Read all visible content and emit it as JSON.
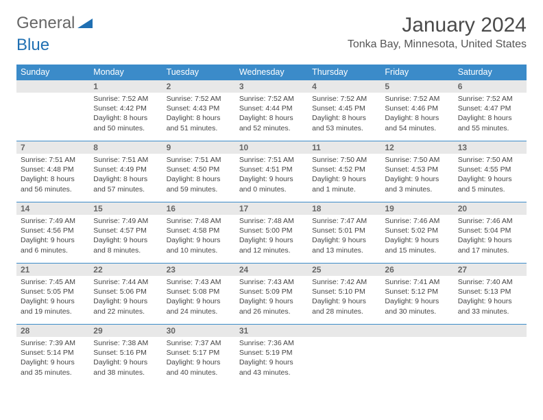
{
  "logo": {
    "text1": "General",
    "text2": "Blue"
  },
  "title": "January 2024",
  "location": "Tonka Bay, Minnesota, United States",
  "colors": {
    "header_bg": "#3b8bc9",
    "header_text": "#ffffff",
    "daynum_bg": "#e8e8e8",
    "border": "#3b8bc9",
    "body_text": "#444444",
    "logo_blue": "#1f6fb2"
  },
  "day_headers": [
    "Sunday",
    "Monday",
    "Tuesday",
    "Wednesday",
    "Thursday",
    "Friday",
    "Saturday"
  ],
  "weeks": [
    [
      null,
      {
        "n": "1",
        "sunrise": "7:52 AM",
        "sunset": "4:42 PM",
        "daylight": "8 hours and 50 minutes."
      },
      {
        "n": "2",
        "sunrise": "7:52 AM",
        "sunset": "4:43 PM",
        "daylight": "8 hours and 51 minutes."
      },
      {
        "n": "3",
        "sunrise": "7:52 AM",
        "sunset": "4:44 PM",
        "daylight": "8 hours and 52 minutes."
      },
      {
        "n": "4",
        "sunrise": "7:52 AM",
        "sunset": "4:45 PM",
        "daylight": "8 hours and 53 minutes."
      },
      {
        "n": "5",
        "sunrise": "7:52 AM",
        "sunset": "4:46 PM",
        "daylight": "8 hours and 54 minutes."
      },
      {
        "n": "6",
        "sunrise": "7:52 AM",
        "sunset": "4:47 PM",
        "daylight": "8 hours and 55 minutes."
      }
    ],
    [
      {
        "n": "7",
        "sunrise": "7:51 AM",
        "sunset": "4:48 PM",
        "daylight": "8 hours and 56 minutes."
      },
      {
        "n": "8",
        "sunrise": "7:51 AM",
        "sunset": "4:49 PM",
        "daylight": "8 hours and 57 minutes."
      },
      {
        "n": "9",
        "sunrise": "7:51 AM",
        "sunset": "4:50 PM",
        "daylight": "8 hours and 59 minutes."
      },
      {
        "n": "10",
        "sunrise": "7:51 AM",
        "sunset": "4:51 PM",
        "daylight": "9 hours and 0 minutes."
      },
      {
        "n": "11",
        "sunrise": "7:50 AM",
        "sunset": "4:52 PM",
        "daylight": "9 hours and 1 minute."
      },
      {
        "n": "12",
        "sunrise": "7:50 AM",
        "sunset": "4:53 PM",
        "daylight": "9 hours and 3 minutes."
      },
      {
        "n": "13",
        "sunrise": "7:50 AM",
        "sunset": "4:55 PM",
        "daylight": "9 hours and 5 minutes."
      }
    ],
    [
      {
        "n": "14",
        "sunrise": "7:49 AM",
        "sunset": "4:56 PM",
        "daylight": "9 hours and 6 minutes."
      },
      {
        "n": "15",
        "sunrise": "7:49 AM",
        "sunset": "4:57 PM",
        "daylight": "9 hours and 8 minutes."
      },
      {
        "n": "16",
        "sunrise": "7:48 AM",
        "sunset": "4:58 PM",
        "daylight": "9 hours and 10 minutes."
      },
      {
        "n": "17",
        "sunrise": "7:48 AM",
        "sunset": "5:00 PM",
        "daylight": "9 hours and 12 minutes."
      },
      {
        "n": "18",
        "sunrise": "7:47 AM",
        "sunset": "5:01 PM",
        "daylight": "9 hours and 13 minutes."
      },
      {
        "n": "19",
        "sunrise": "7:46 AM",
        "sunset": "5:02 PM",
        "daylight": "9 hours and 15 minutes."
      },
      {
        "n": "20",
        "sunrise": "7:46 AM",
        "sunset": "5:04 PM",
        "daylight": "9 hours and 17 minutes."
      }
    ],
    [
      {
        "n": "21",
        "sunrise": "7:45 AM",
        "sunset": "5:05 PM",
        "daylight": "9 hours and 19 minutes."
      },
      {
        "n": "22",
        "sunrise": "7:44 AM",
        "sunset": "5:06 PM",
        "daylight": "9 hours and 22 minutes."
      },
      {
        "n": "23",
        "sunrise": "7:43 AM",
        "sunset": "5:08 PM",
        "daylight": "9 hours and 24 minutes."
      },
      {
        "n": "24",
        "sunrise": "7:43 AM",
        "sunset": "5:09 PM",
        "daylight": "9 hours and 26 minutes."
      },
      {
        "n": "25",
        "sunrise": "7:42 AM",
        "sunset": "5:10 PM",
        "daylight": "9 hours and 28 minutes."
      },
      {
        "n": "26",
        "sunrise": "7:41 AM",
        "sunset": "5:12 PM",
        "daylight": "9 hours and 30 minutes."
      },
      {
        "n": "27",
        "sunrise": "7:40 AM",
        "sunset": "5:13 PM",
        "daylight": "9 hours and 33 minutes."
      }
    ],
    [
      {
        "n": "28",
        "sunrise": "7:39 AM",
        "sunset": "5:14 PM",
        "daylight": "9 hours and 35 minutes."
      },
      {
        "n": "29",
        "sunrise": "7:38 AM",
        "sunset": "5:16 PM",
        "daylight": "9 hours and 38 minutes."
      },
      {
        "n": "30",
        "sunrise": "7:37 AM",
        "sunset": "5:17 PM",
        "daylight": "9 hours and 40 minutes."
      },
      {
        "n": "31",
        "sunrise": "7:36 AM",
        "sunset": "5:19 PM",
        "daylight": "9 hours and 43 minutes."
      },
      null,
      null,
      null
    ]
  ],
  "labels": {
    "sunrise": "Sunrise:",
    "sunset": "Sunset:",
    "daylight": "Daylight:"
  }
}
